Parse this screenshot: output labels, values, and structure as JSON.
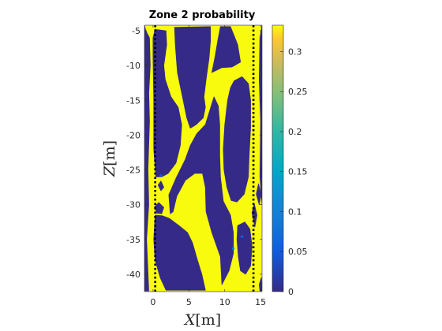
{
  "chart_data": {
    "type": "heatmap",
    "title": "Zone 2 probability",
    "xlabel_var": "X",
    "xlabel_unit": "[m]",
    "ylabel_var": "Z",
    "ylabel_unit": "[m]",
    "xlim": [
      -1.2,
      15.2
    ],
    "ylim": [
      -42.5,
      -4.2
    ],
    "xticks": [
      0,
      5,
      10,
      15
    ],
    "yticks": [
      -5,
      -10,
      -15,
      -20,
      -25,
      -30,
      -35,
      -40
    ],
    "colorbar": {
      "range": [
        0,
        0.333
      ],
      "ticks": [
        0,
        0.05,
        0.1,
        0.15,
        0.2,
        0.25,
        0.3
      ],
      "tick_labels": [
        "0",
        "0.05",
        "0.1",
        "0.15",
        "0.2",
        "0.25",
        "0.3"
      ],
      "colormap": "parula"
    },
    "background_value": 0.333,
    "low_regions_value": 0,
    "low_regions": [
      [
        [
          0.3,
          -4.8
        ],
        [
          1.8,
          -5
        ],
        [
          1.9,
          -7
        ],
        [
          1.5,
          -10
        ],
        [
          1.7,
          -12
        ],
        [
          2.5,
          -14.5
        ],
        [
          3.5,
          -16
        ],
        [
          4,
          -18.5
        ],
        [
          3.8,
          -21.5
        ],
        [
          3.2,
          -24
        ],
        [
          2.1,
          -25.5
        ],
        [
          1.2,
          -26
        ],
        [
          0.4,
          -26
        ],
        [
          0.1,
          -22
        ],
        [
          0.1,
          -15
        ],
        [
          0,
          -9
        ],
        [
          0,
          -6
        ]
      ],
      [
        [
          3,
          -4.5
        ],
        [
          8,
          -4.4
        ],
        [
          8,
          -6.5
        ],
        [
          7.8,
          -9
        ],
        [
          7.4,
          -12
        ],
        [
          7.1,
          -14.5
        ],
        [
          7.3,
          -16
        ],
        [
          7,
          -17.5
        ],
        [
          6,
          -18.5
        ],
        [
          5.2,
          -19
        ],
        [
          4.7,
          -17.5
        ],
        [
          4.2,
          -15
        ],
        [
          3.4,
          -11
        ],
        [
          3.1,
          -7
        ]
      ],
      [
        [
          8.2,
          -11
        ],
        [
          8.6,
          -9
        ],
        [
          9.1,
          -6
        ],
        [
          9.4,
          -4.4
        ],
        [
          10.8,
          -4.4
        ],
        [
          11.8,
          -7
        ],
        [
          12.2,
          -9.5
        ],
        [
          11,
          -10.2
        ],
        [
          9.6,
          -10.3
        ]
      ],
      [
        [
          11.3,
          -12.2
        ],
        [
          12.4,
          -11.6
        ],
        [
          13.3,
          -12.6
        ],
        [
          13.6,
          -15
        ],
        [
          13.6,
          -19
        ],
        [
          13.4,
          -23
        ],
        [
          13.3,
          -26
        ],
        [
          12.7,
          -28.5
        ],
        [
          11.7,
          -29.6
        ],
        [
          10.9,
          -29.4
        ],
        [
          10.3,
          -27.5
        ],
        [
          9.9,
          -25
        ],
        [
          9.8,
          -22
        ],
        [
          10,
          -18.5
        ],
        [
          10.4,
          -15
        ],
        [
          10.8,
          -13.2
        ]
      ],
      [
        [
          8.5,
          -14.5
        ],
        [
          9.1,
          -15.8
        ],
        [
          9.3,
          -18.5
        ],
        [
          9.3,
          -23
        ],
        [
          9.4,
          -26
        ],
        [
          9.8,
          -29.5
        ],
        [
          10.8,
          -31.5
        ],
        [
          11.2,
          -34
        ],
        [
          11.2,
          -37
        ],
        [
          10.6,
          -39.5
        ],
        [
          9.6,
          -41.5
        ],
        [
          9.4,
          -37.5
        ],
        [
          8.2,
          -34
        ],
        [
          7.4,
          -31
        ],
        [
          7.3,
          -27.5
        ],
        [
          6.9,
          -25.5
        ],
        [
          5.8,
          -25.5
        ],
        [
          4.5,
          -26.5
        ],
        [
          3.3,
          -28.8
        ],
        [
          2.8,
          -31
        ],
        [
          2.4,
          -31.3
        ],
        [
          2.2,
          -28.6
        ],
        [
          3.2,
          -26.2
        ],
        [
          4.5,
          -23.5
        ],
        [
          5.2,
          -21.5
        ],
        [
          6.1,
          -19.8
        ],
        [
          7.3,
          -18.5
        ],
        [
          7.9,
          -16.5
        ]
      ],
      [
        [
          0.3,
          -31.5
        ],
        [
          1.3,
          -31.6
        ],
        [
          2.3,
          -32
        ],
        [
          3.6,
          -33
        ],
        [
          4.8,
          -34
        ],
        [
          5.5,
          -35.5
        ],
        [
          6.2,
          -38
        ],
        [
          6.8,
          -40
        ],
        [
          7.3,
          -42.3
        ],
        [
          1.8,
          -42.3
        ],
        [
          1,
          -40.5
        ],
        [
          0.3,
          -38
        ],
        [
          0.1,
          -35
        ]
      ],
      [
        [
          11.8,
          -33
        ],
        [
          12.8,
          -32.5
        ],
        [
          13.5,
          -33.5
        ],
        [
          13.8,
          -36
        ],
        [
          13.6,
          -38.8
        ],
        [
          12.9,
          -40
        ],
        [
          12.2,
          -39.5
        ],
        [
          11.9,
          -37.5
        ],
        [
          11.7,
          -35
        ]
      ],
      [
        [
          13.8,
          -31.2
        ],
        [
          14.1,
          -29.8
        ],
        [
          14.5,
          -31.5
        ],
        [
          14.2,
          -33.2
        ]
      ],
      [
        [
          14.4,
          -28.5
        ],
        [
          14.7,
          -27
        ],
        [
          15.1,
          -28.5
        ],
        [
          14.8,
          -30
        ]
      ],
      [
        [
          0.45,
          -23.4
        ],
        [
          0.9,
          -22.6
        ],
        [
          1.3,
          -23.6
        ],
        [
          0.9,
          -24.4
        ]
      ],
      [
        [
          0.7,
          -27.2
        ],
        [
          1.1,
          -26.6
        ],
        [
          1.5,
          -27.5
        ],
        [
          1.1,
          -28
        ]
      ],
      [
        [
          0.2,
          -30.3
        ],
        [
          0.8,
          -29.7
        ],
        [
          1.5,
          -30.4
        ],
        [
          1.2,
          -31.3
        ],
        [
          0.5,
          -31.2
        ]
      ],
      [
        [
          14.8,
          -41.5
        ],
        [
          15.1,
          -40.5
        ],
        [
          15.2,
          -42.4
        ],
        [
          14.9,
          -42.4
        ]
      ],
      [
        [
          -1,
          -5
        ],
        [
          -0.5,
          -6
        ],
        [
          -0.4,
          -10
        ],
        [
          -0.6,
          -14
        ],
        [
          -0.5,
          -18
        ],
        [
          -0.7,
          -25
        ],
        [
          -0.6,
          -30
        ],
        [
          -0.9,
          -35
        ],
        [
          -0.6,
          -42.4
        ],
        [
          -1.2,
          -42.4
        ],
        [
          -1.2,
          -4.2
        ]
      ],
      [
        [
          15.2,
          -4.2
        ],
        [
          14.9,
          -6
        ],
        [
          14.8,
          -12
        ],
        [
          15,
          -18
        ],
        [
          14.9,
          -26
        ],
        [
          15.2,
          -30
        ]
      ]
    ],
    "mid_spots": [
      [
        11.2,
        -36.3,
        0.1
      ],
      [
        12.4,
        -34.6,
        0.06
      ],
      [
        1.1,
        -25.8,
        0.05
      ]
    ],
    "dotted_lines_x": [
      0.3,
      14
    ]
  }
}
